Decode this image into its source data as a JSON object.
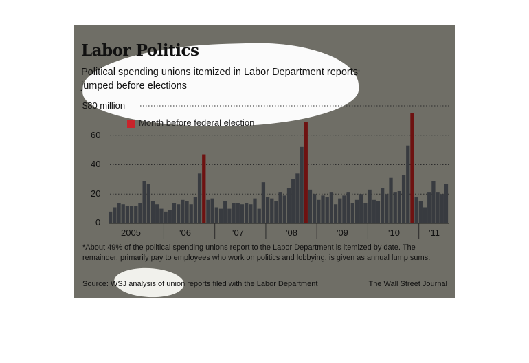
{
  "chart_data": {
    "type": "bar",
    "title": "Labor Politics",
    "subtitle": "Political spending unions itemized in Labor Department reports",
    "subtitle_marker": "*",
    "subtitle_line2": "jumped before elections",
    "ylim": [
      0,
      80
    ],
    "ytick_labels": [
      "$80 million",
      "60",
      "40",
      "20",
      "0"
    ],
    "ytick_values": [
      80,
      60,
      40,
      20,
      0
    ],
    "xtick_labels": [
      "2005",
      "'06",
      "'07",
      "'08",
      "'09",
      "'10",
      "'11"
    ],
    "legend": {
      "label": "Month before federal election",
      "placement": "top-left"
    },
    "colors": {
      "bar": "#383b40",
      "highlight": "#6e1211",
      "legend": "#c8242b"
    },
    "values": [
      8,
      11,
      14,
      13,
      12,
      12,
      12,
      14,
      29,
      27,
      15,
      13,
      10,
      8,
      9,
      14,
      13,
      16,
      15,
      13,
      18,
      34,
      47,
      16,
      17,
      11,
      10,
      15,
      10,
      14,
      14,
      13,
      14,
      13,
      17,
      10,
      28,
      18,
      17,
      15,
      21,
      19,
      24,
      30,
      34,
      52,
      69,
      23,
      20,
      16,
      19,
      18,
      21,
      13,
      17,
      19,
      21,
      14,
      16,
      20,
      14,
      23,
      16,
      15,
      24,
      20,
      31,
      21,
      22,
      33,
      53,
      75,
      18,
      15,
      11,
      21,
      29,
      21,
      20,
      27
    ],
    "highlight_indices": [
      22,
      46,
      71
    ],
    "footnote": "*About 49% of the political spending unions report to the Labor Department is itemized by date. The remainder, primarily pay to employees who work on politics and lobbying, is given as annual lump sums.",
    "source": "Source: WSJ analysis of union reports filed with the Labor Department",
    "credit": "The Wall Street Journal"
  }
}
